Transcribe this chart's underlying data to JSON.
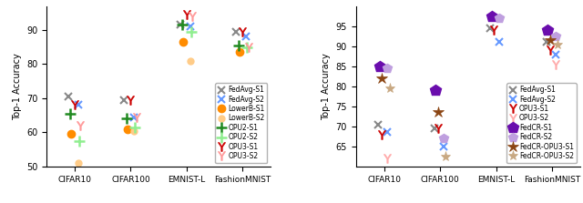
{
  "left": {
    "ylabel": "Top-1 Accuracy",
    "datasets": [
      {
        "label": "FedAvg-S1",
        "color": "#888888",
        "marker": "x",
        "ms": 6,
        "mew": 1.5,
        "mfc": "none",
        "values": {
          "CIFAR10": 70.5,
          "CIFAR100": 69.5,
          "EMNIST-L": 91.5,
          "FashionMNIST": 89.5
        }
      },
      {
        "label": "FedAvg-S2",
        "color": "#6699ff",
        "marker": "x",
        "ms": 6,
        "mew": 1.5,
        "mfc": "none",
        "values": {
          "CIFAR10": 68.0,
          "CIFAR100": 64.5,
          "EMNIST-L": 91.0,
          "FashionMNIST": 88.0
        }
      },
      {
        "label": "LowerB-S1",
        "color": "#ff8c00",
        "marker": "o",
        "ms": 6,
        "mew": 1.0,
        "mfc": "#ff8c00",
        "values": {
          "CIFAR10": 59.5,
          "CIFAR100": 61.0,
          "EMNIST-L": 86.5,
          "FashionMNIST": 83.5
        }
      },
      {
        "label": "LowerB-S2",
        "color": "#ffcc88",
        "marker": "o",
        "ms": 5,
        "mew": 1.0,
        "mfc": "#ffcc88",
        "values": {
          "CIFAR10": 51.0,
          "CIFAR100": 60.5,
          "EMNIST-L": 81.0,
          "FashionMNIST": null
        }
      },
      {
        "label": "OPU2-S1",
        "color": "#228B22",
        "marker": "+",
        "ms": 8,
        "mew": 1.8,
        "mfc": "none",
        "values": {
          "CIFAR10": 65.5,
          "CIFAR100": 64.0,
          "EMNIST-L": 91.5,
          "FashionMNIST": 85.5
        }
      },
      {
        "label": "OPU2-S2",
        "color": "#90EE90",
        "marker": "+",
        "ms": 8,
        "mew": 1.8,
        "mfc": "none",
        "values": {
          "CIFAR10": 57.5,
          "CIFAR100": 61.5,
          "EMNIST-L": 89.5,
          "FashionMNIST": 85.0
        }
      },
      {
        "label": "OPU3-S1",
        "color": "#cc0000",
        "marker": "$\\Upsilon$",
        "ms": 7,
        "mew": 0.5,
        "mfc": "#cc0000",
        "values": {
          "CIFAR10": 68.0,
          "CIFAR100": 69.5,
          "EMNIST-L": 94.5,
          "FashionMNIST": 89.5
        }
      },
      {
        "label": "OPU3-S2",
        "color": "#ff9999",
        "marker": "$\\Upsilon$",
        "ms": 7,
        "mew": 0.5,
        "mfc": "#ff9999",
        "values": {
          "CIFAR10": 62.0,
          "CIFAR100": 64.5,
          "EMNIST-L": 94.0,
          "FashionMNIST": 85.0
        }
      }
    ],
    "ylim": [
      50,
      97
    ],
    "yticks": [
      50,
      60,
      70,
      80,
      90
    ],
    "categories": [
      "CIFAR10",
      "CIFAR100",
      "EMNIST-L",
      "FashionMNIST"
    ],
    "jitter": [
      -0.12,
      0.06,
      -0.06,
      0.06,
      -0.08,
      0.08,
      0.0,
      0.1
    ]
  },
  "right": {
    "ylabel": "Top-1 Accuracy",
    "datasets": [
      {
        "label": "FedAvg-S1",
        "color": "#888888",
        "marker": "x",
        "ms": 6,
        "mew": 1.5,
        "mfc": "none",
        "values": {
          "CIFAR10": 70.5,
          "CIFAR100": 69.5,
          "EMNIST-L": 94.5,
          "FashionMNIST": 91.0
        }
      },
      {
        "label": "FedAvg-S2",
        "color": "#6699ff",
        "marker": "x",
        "ms": 6,
        "mew": 1.5,
        "mfc": "none",
        "values": {
          "CIFAR10": 68.5,
          "CIFAR100": 65.0,
          "EMNIST-L": 91.0,
          "FashionMNIST": 88.0
        }
      },
      {
        "label": "OPU3-S1",
        "color": "#cc0000",
        "marker": "$\\Upsilon$",
        "ms": 7,
        "mew": 0.5,
        "mfc": "#cc0000",
        "values": {
          "CIFAR10": 68.0,
          "CIFAR100": 69.5,
          "EMNIST-L": 94.0,
          "FashionMNIST": 89.0
        }
      },
      {
        "label": "OPU3-S2",
        "color": "#ffaaaa",
        "marker": "$\\Upsilon$",
        "ms": 7,
        "mew": 0.5,
        "mfc": "#ffaaaa",
        "values": {
          "CIFAR10": 62.0,
          "CIFAR100": null,
          "EMNIST-L": null,
          "FashionMNIST": 85.5
        }
      },
      {
        "label": "FedCR-S1",
        "color": "#6A0DAD",
        "marker": "p",
        "ms": 9,
        "mew": 1.0,
        "mfc": "#6A0DAD",
        "values": {
          "CIFAR10": 85.0,
          "CIFAR100": 79.0,
          "EMNIST-L": 97.5,
          "FashionMNIST": 94.0
        }
      },
      {
        "label": "FedCR-S2",
        "color": "#bf9fdf",
        "marker": "p",
        "ms": 7,
        "mew": 1.0,
        "mfc": "#bf9fdf",
        "values": {
          "CIFAR10": 84.5,
          "CIFAR100": 67.0,
          "EMNIST-L": 97.0,
          "FashionMNIST": 92.5
        }
      },
      {
        "label": "FedCR-OPU3-S1",
        "color": "#8B4513",
        "marker": "*",
        "ms": 9,
        "mew": 0.5,
        "mfc": "#8B4513",
        "values": {
          "CIFAR10": 82.0,
          "CIFAR100": 73.5,
          "EMNIST-L": null,
          "FashionMNIST": 91.5
        }
      },
      {
        "label": "FedCR-OPU3-S2",
        "color": "#c8a882",
        "marker": "*",
        "ms": 8,
        "mew": 0.5,
        "mfc": "#c8a882",
        "values": {
          "CIFAR10": 79.5,
          "CIFAR100": 62.5,
          "EMNIST-L": null,
          "FashionMNIST": 90.5
        }
      }
    ],
    "ylim": [
      60,
      100
    ],
    "yticks": [
      65,
      70,
      75,
      80,
      85,
      90,
      95
    ],
    "categories": [
      "CIFAR10",
      "CIFAR100",
      "EMNIST-L",
      "FashionMNIST"
    ],
    "jitter": [
      -0.1,
      0.06,
      -0.04,
      0.06,
      -0.08,
      0.06,
      -0.04,
      0.1
    ]
  }
}
